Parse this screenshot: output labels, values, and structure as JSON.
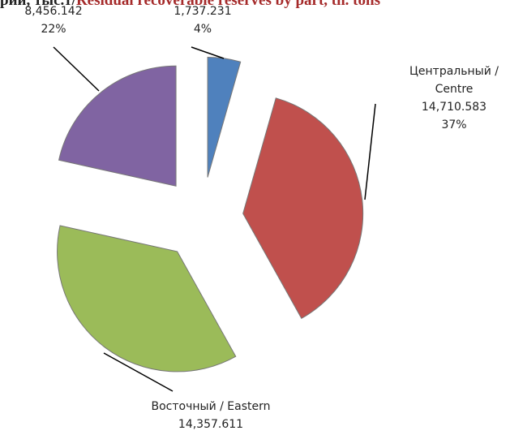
{
  "chart_data": {
    "type": "pie",
    "title_prefix": "рии, тыс.т/",
    "title": "Residual recoverable reserves by part, th. tons",
    "categories": [
      null,
      "Центральный / Centre",
      "Восточный / Eastern",
      null
    ],
    "values": [
      1737.231,
      14710.583,
      14357.611,
      8456.142
    ],
    "value_labels": [
      "1,737.231",
      "14,710.583",
      "14,357.611",
      "8,456.142"
    ],
    "percent_labels": [
      "4%",
      "37%",
      null,
      "22%"
    ],
    "colors": [
      "#4f81bd",
      "#c0504d",
      "#9bbb59",
      "#8064a2"
    ]
  }
}
